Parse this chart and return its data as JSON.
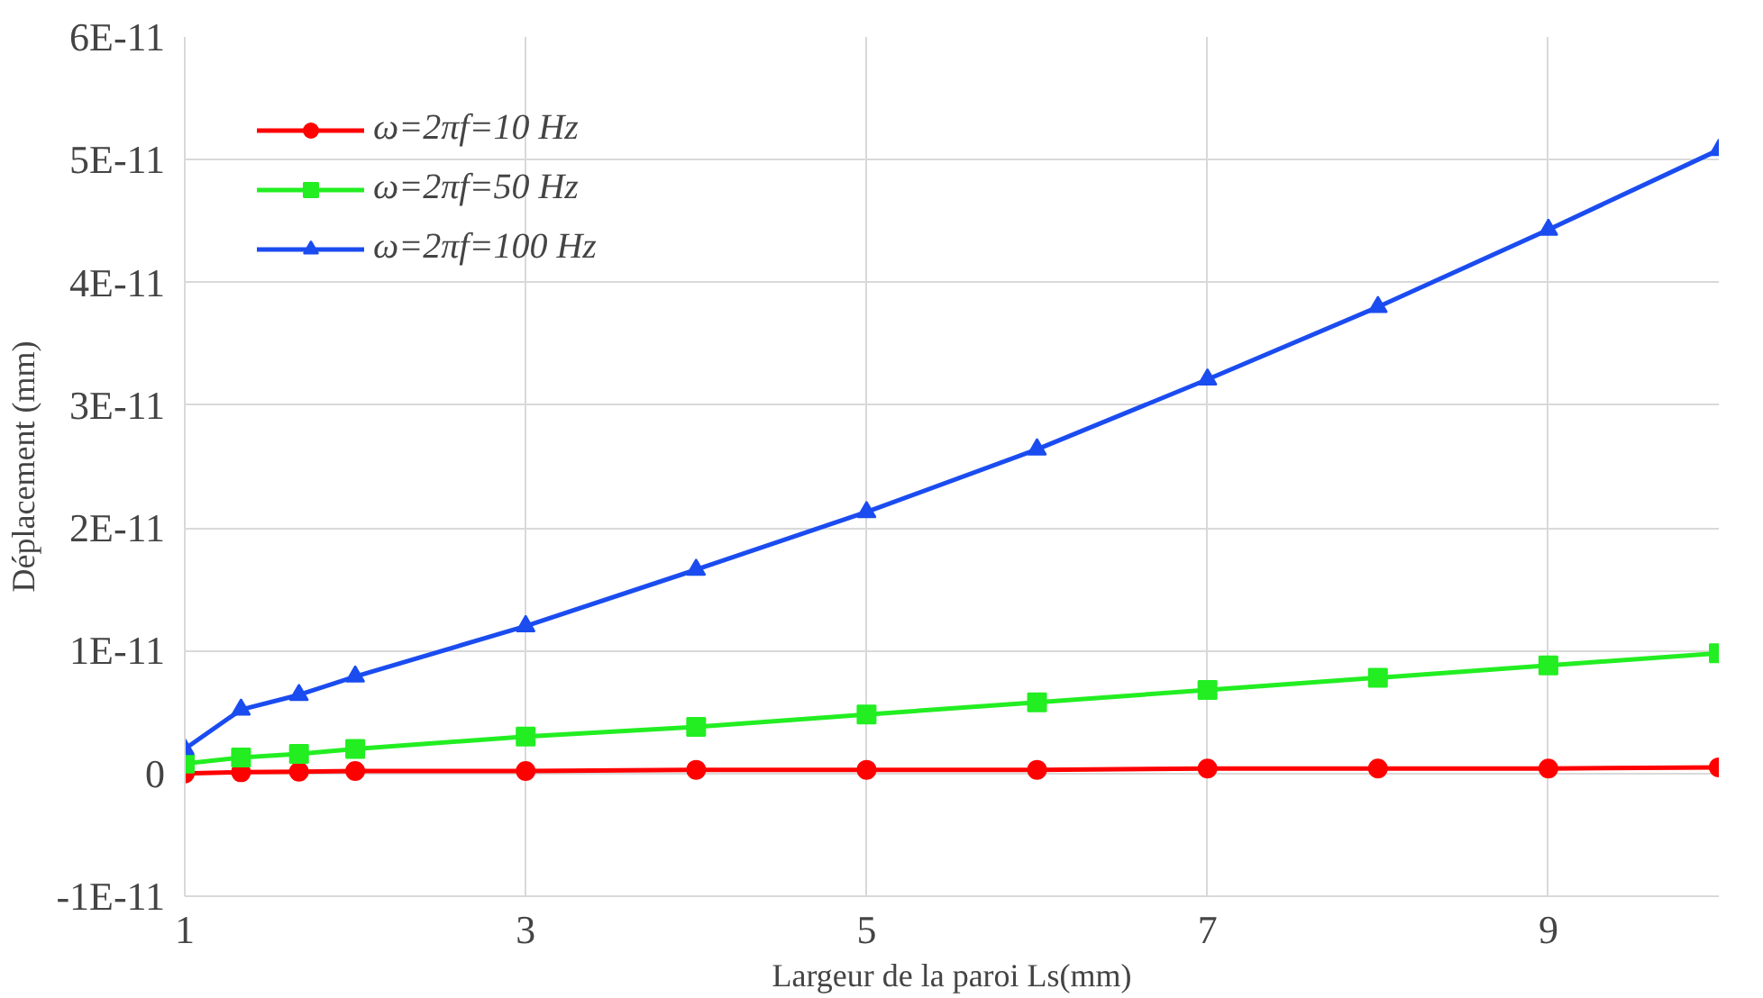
{
  "chart_data": {
    "type": "line",
    "xlabel": "Largeur de la paroi Ls(mm)",
    "ylabel": "Déplacement (mm)",
    "x": [
      1,
      1.33,
      1.67,
      2,
      3,
      4,
      5,
      6,
      7,
      8,
      9,
      10
    ],
    "series": [
      {
        "name": "ω=2πf=10 Hz",
        "color": "#ff0000",
        "marker": "circle",
        "values": [
          0,
          1e-13,
          1.5e-13,
          2e-13,
          2e-13,
          3e-13,
          3e-13,
          3e-13,
          4e-13,
          4e-13,
          4e-13,
          5e-13
        ]
      },
      {
        "name": "ω=2πf=50 Hz",
        "color": "#22ee22",
        "marker": "square",
        "values": [
          8e-13,
          1.3e-12,
          1.6e-12,
          2e-12,
          3e-12,
          3.8e-12,
          4.8e-12,
          5.8e-12,
          6.8e-12,
          7.8e-12,
          8.8e-12,
          9.8e-12
        ]
      },
      {
        "name": "ω=2πf=100 Hz",
        "color": "#1a4cf0",
        "marker": "triangle",
        "values": [
          2e-12,
          5.2e-12,
          6.4e-12,
          7.9e-12,
          1.2e-11,
          1.66e-11,
          2.13e-11,
          2.64e-11,
          3.21e-11,
          3.8e-11,
          4.43e-11,
          5.08e-11
        ]
      }
    ],
    "xlim": [
      1,
      10
    ],
    "xticks": [
      1,
      3,
      5,
      7,
      9
    ],
    "ylim": [
      -1e-11,
      6e-11
    ],
    "yticks": [
      {
        "value": -1e-11,
        "label": "-1E-11"
      },
      {
        "value": 0,
        "label": "0"
      },
      {
        "value": 1e-11,
        "label": "1E-11"
      },
      {
        "value": 2e-11,
        "label": "2E-11"
      },
      {
        "value": 3e-11,
        "label": "3E-11"
      },
      {
        "value": 4e-11,
        "label": "4E-11"
      },
      {
        "value": 5e-11,
        "label": "5E-11"
      },
      {
        "value": 6e-11,
        "label": "6E-11"
      }
    ],
    "grid": true,
    "legend": "top left",
    "line_style": "solid"
  }
}
